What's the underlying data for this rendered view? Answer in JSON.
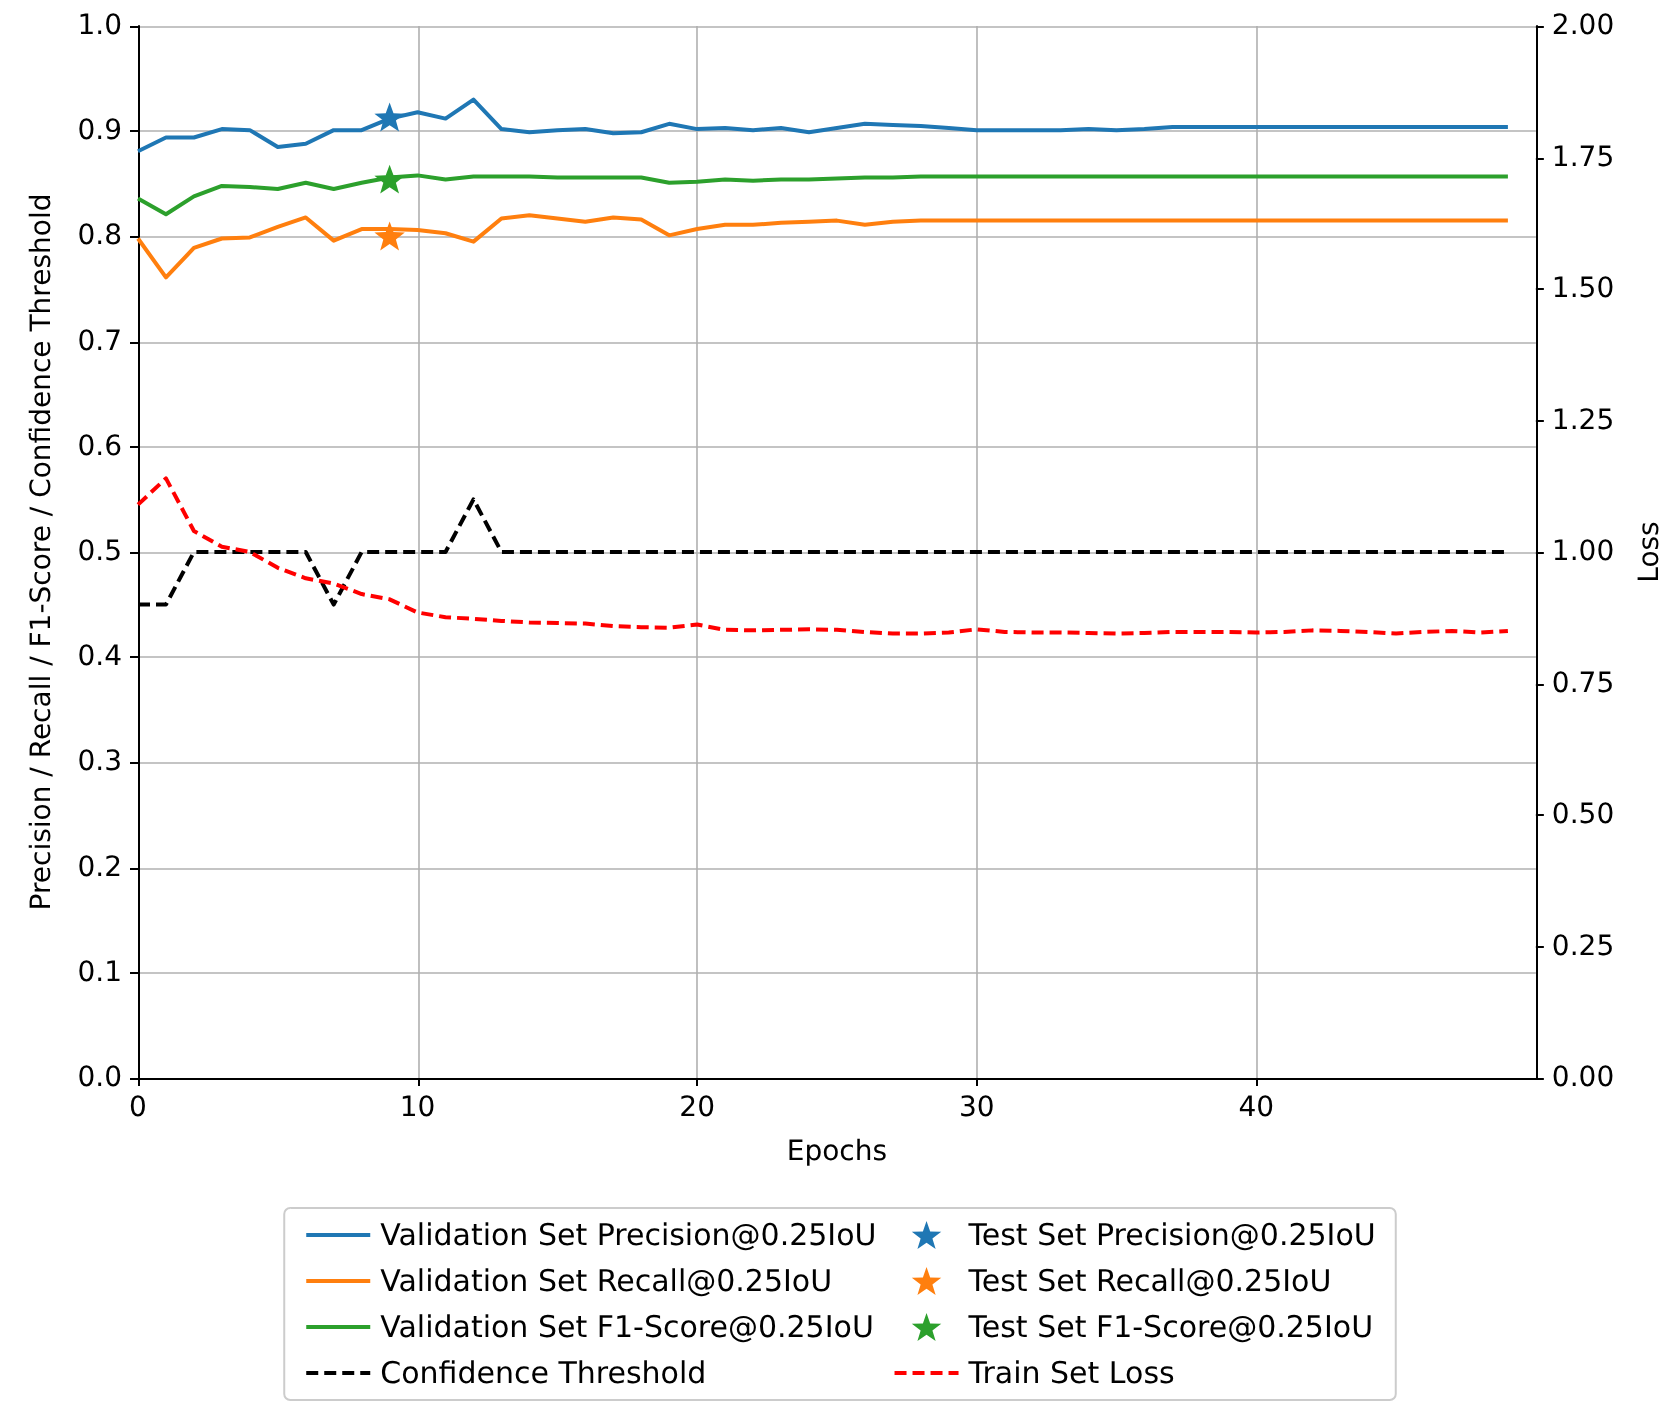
{
  "chart_data": {
    "type": "line",
    "xlabel": "Epochs",
    "ylabel": "Precision / Recall / F1-Score / Confidence Threshold",
    "y2label": "Loss",
    "x": [
      0,
      1,
      2,
      3,
      4,
      5,
      6,
      7,
      8,
      9,
      10,
      11,
      12,
      13,
      14,
      15,
      16,
      17,
      18,
      19,
      20,
      21,
      22,
      23,
      24,
      25,
      26,
      27,
      28,
      29,
      30,
      31,
      32,
      33,
      34,
      35,
      36,
      37,
      38,
      39,
      40,
      41,
      42,
      43,
      44,
      45,
      46,
      47,
      48,
      49
    ],
    "xlim": [
      0,
      50
    ],
    "xticks": [
      0,
      10,
      20,
      30,
      40
    ],
    "ylim": [
      0,
      1
    ],
    "yticks": [
      {
        "value": 0,
        "label": "0.0"
      },
      0.1,
      0.2,
      0.3,
      0.4,
      0.5,
      0.6,
      0.7,
      0.8,
      0.9,
      {
        "value": 1,
        "label": "1.0"
      }
    ],
    "y2lim": [
      0,
      2
    ],
    "y2ticks": [
      {
        "value": 0,
        "label": "0.00"
      },
      0.25,
      {
        "value": 0.5,
        "label": "0.50"
      },
      0.75,
      {
        "value": 1,
        "label": "1.00"
      },
      1.25,
      {
        "value": 1.5,
        "label": "1.50"
      },
      1.75,
      {
        "value": 2,
        "label": "2.00"
      }
    ],
    "grid": true,
    "legend": "bottom",
    "series": [
      {
        "name": "Validation Set Precision@0.25IoU",
        "color": "#1f77b4",
        "line_style": "solid",
        "marker": "none",
        "values": [
          0.881,
          0.894,
          0.894,
          0.902,
          0.901,
          0.885,
          0.888,
          0.901,
          0.901,
          0.912,
          0.918,
          0.912,
          0.93,
          0.902,
          0.899,
          0.901,
          0.902,
          0.898,
          0.899,
          0.907,
          0.902,
          0.903,
          0.901,
          0.903,
          0.899,
          0.903,
          0.907,
          0.906,
          0.905,
          0.903,
          0.901,
          0.901,
          0.901,
          0.901,
          0.902,
          0.901,
          0.902,
          0.904,
          0.904,
          0.904,
          0.904,
          0.904,
          0.904,
          0.904,
          0.904,
          0.904,
          0.904,
          0.904,
          0.904,
          0.904
        ]
      },
      {
        "name": "Validation Set Recall@0.25IoU",
        "color": "#ff7f0e",
        "line_style": "solid",
        "marker": "none",
        "values": [
          0.798,
          0.761,
          0.789,
          0.798,
          0.799,
          0.809,
          0.818,
          0.796,
          0.807,
          0.807,
          0.806,
          0.803,
          0.795,
          0.817,
          0.82,
          0.817,
          0.814,
          0.818,
          0.816,
          0.801,
          0.807,
          0.811,
          0.811,
          0.813,
          0.814,
          0.815,
          0.811,
          0.814,
          0.815,
          0.815,
          0.815,
          0.815,
          0.815,
          0.815,
          0.815,
          0.815,
          0.815,
          0.815,
          0.815,
          0.815,
          0.815,
          0.815,
          0.815,
          0.815,
          0.815,
          0.815,
          0.815,
          0.815,
          0.815,
          0.815
        ]
      },
      {
        "name": "Validation Set F1-Score@0.25IoU",
        "color": "#2ca02c",
        "line_style": "solid",
        "marker": "none",
        "values": [
          0.836,
          0.821,
          0.838,
          0.848,
          0.847,
          0.845,
          0.851,
          0.845,
          0.851,
          0.856,
          0.858,
          0.854,
          0.857,
          0.857,
          0.857,
          0.856,
          0.856,
          0.856,
          0.856,
          0.851,
          0.852,
          0.854,
          0.853,
          0.854,
          0.854,
          0.855,
          0.856,
          0.856,
          0.857,
          0.857,
          0.857,
          0.857,
          0.857,
          0.857,
          0.857,
          0.857,
          0.857,
          0.857,
          0.857,
          0.857,
          0.857,
          0.857,
          0.857,
          0.857,
          0.857,
          0.857,
          0.857,
          0.857,
          0.857,
          0.857
        ]
      },
      {
        "name": "Confidence Threshold",
        "color": "#000000",
        "line_style": "dashed",
        "marker": "none",
        "values": [
          0.45,
          0.45,
          0.5,
          0.5,
          0.5,
          0.5,
          0.5,
          0.45,
          0.5,
          0.5,
          0.5,
          0.5,
          0.55,
          0.5,
          0.5,
          0.5,
          0.5,
          0.5,
          0.5,
          0.5,
          0.5,
          0.5,
          0.5,
          0.5,
          0.5,
          0.5,
          0.5,
          0.5,
          0.5,
          0.5,
          0.5,
          0.5,
          0.5,
          0.5,
          0.5,
          0.5,
          0.5,
          0.5,
          0.5,
          0.5,
          0.5,
          0.5,
          0.5,
          0.5,
          0.5,
          0.5,
          0.5,
          0.5,
          0.5,
          0.5
        ]
      },
      {
        "name": "Test Set Precision@0.25IoU",
        "type": "scatter",
        "marker": "star",
        "color": "#1f77b4",
        "values": [
          null,
          null,
          null,
          null,
          null,
          null,
          null,
          null,
          null,
          0.912,
          null,
          null,
          null,
          null,
          null,
          null,
          null,
          null,
          null,
          null,
          null,
          null,
          null,
          null,
          null,
          null,
          null,
          null,
          null,
          null,
          null,
          null,
          null,
          null,
          null,
          null,
          null,
          null,
          null,
          null,
          null,
          null,
          null,
          null,
          null,
          null,
          null,
          null,
          null,
          null
        ]
      },
      {
        "name": "Test Set Recall@0.25IoU",
        "type": "scatter",
        "marker": "star",
        "color": "#ff7f0e",
        "values": [
          null,
          null,
          null,
          null,
          null,
          null,
          null,
          null,
          null,
          0.799,
          null,
          null,
          null,
          null,
          null,
          null,
          null,
          null,
          null,
          null,
          null,
          null,
          null,
          null,
          null,
          null,
          null,
          null,
          null,
          null,
          null,
          null,
          null,
          null,
          null,
          null,
          null,
          null,
          null,
          null,
          null,
          null,
          null,
          null,
          null,
          null,
          null,
          null,
          null,
          null
        ]
      },
      {
        "name": "Test Set F1-Score@0.25IoU",
        "type": "scatter",
        "marker": "star",
        "color": "#2ca02c",
        "values": [
          null,
          null,
          null,
          null,
          null,
          null,
          null,
          null,
          null,
          0.853,
          null,
          null,
          null,
          null,
          null,
          null,
          null,
          null,
          null,
          null,
          null,
          null,
          null,
          null,
          null,
          null,
          null,
          null,
          null,
          null,
          null,
          null,
          null,
          null,
          null,
          null,
          null,
          null,
          null,
          null,
          null,
          null,
          null,
          null,
          null,
          null,
          null,
          null,
          null,
          null
        ]
      },
      {
        "name": "Train Set Loss",
        "color": "#ff0000",
        "line_style": "dashed",
        "marker": "none",
        "axis": "y2",
        "values": [
          1.09,
          1.14,
          1.04,
          1.01,
          1.0,
          0.97,
          0.95,
          0.94,
          0.92,
          0.91,
          0.885,
          0.876,
          0.873,
          0.869,
          0.866,
          0.865,
          0.864,
          0.859,
          0.857,
          0.856,
          0.862,
          0.852,
          0.851,
          0.852,
          0.853,
          0.852,
          0.848,
          0.845,
          0.845,
          0.847,
          0.853,
          0.848,
          0.847,
          0.847,
          0.846,
          0.845,
          0.846,
          0.848,
          0.848,
          0.848,
          0.847,
          0.848,
          0.851,
          0.85,
          0.848,
          0.845,
          0.848,
          0.85,
          0.847,
          0.85
        ]
      }
    ]
  }
}
